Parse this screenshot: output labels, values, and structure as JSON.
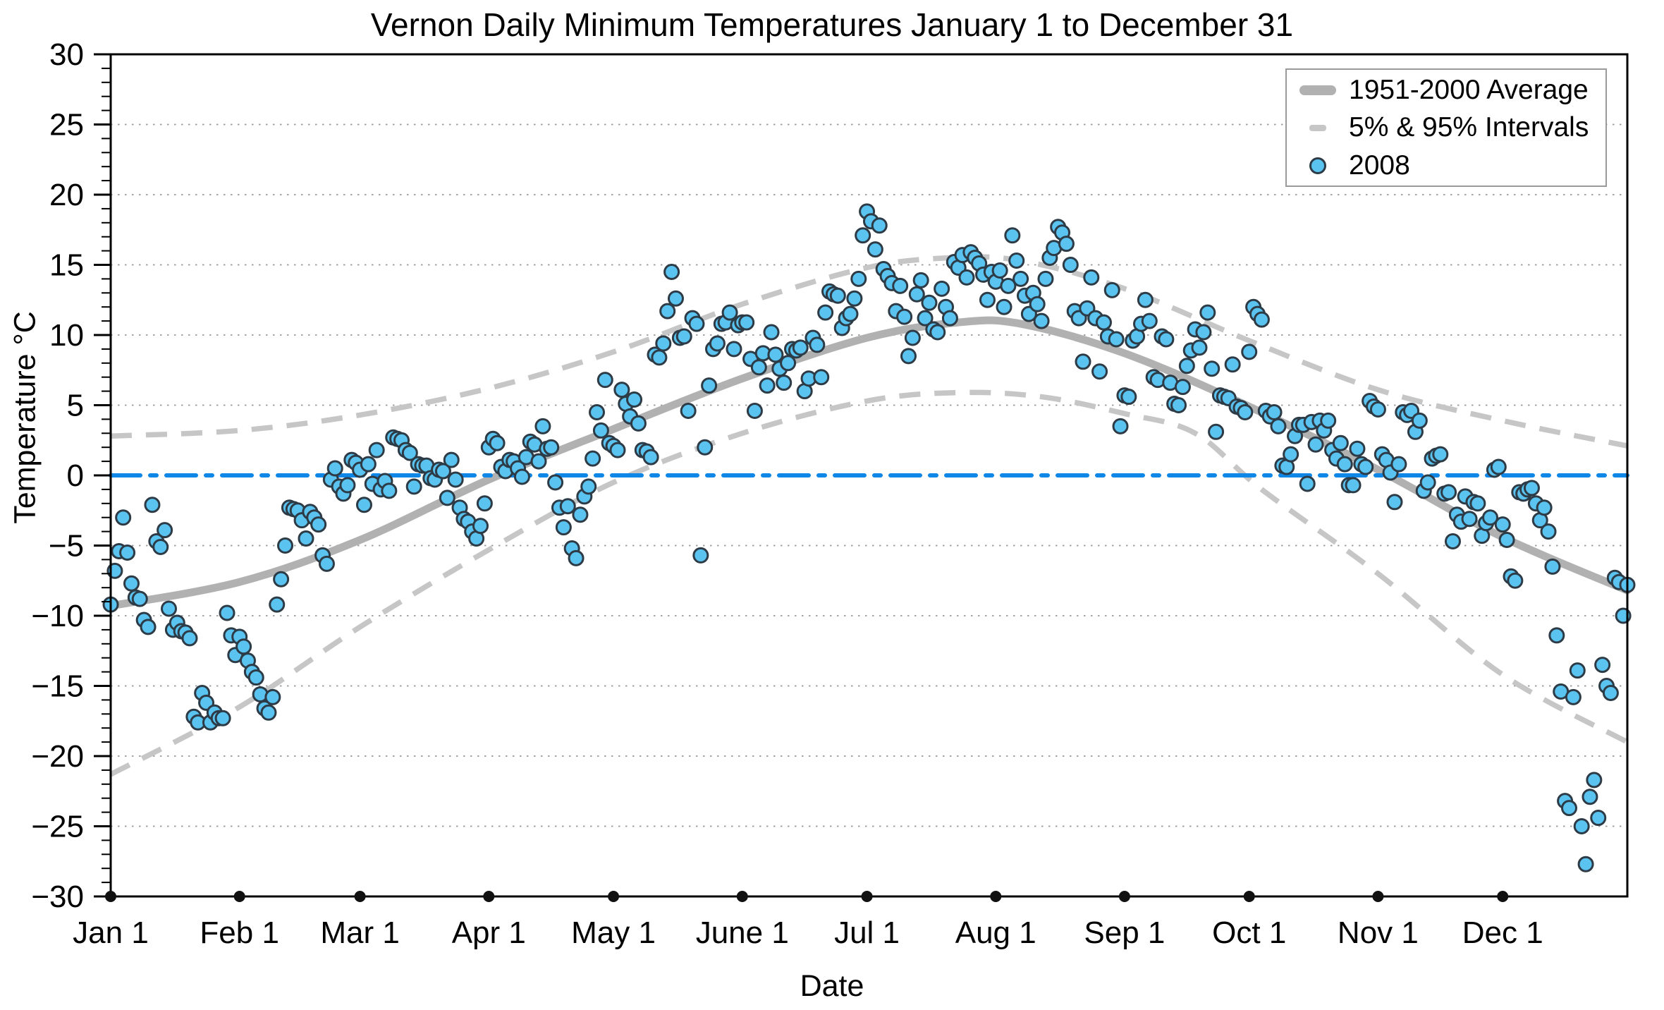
{
  "chart_data": {
    "type": "scatter",
    "title": "Vernon Daily Minimum Temperatures January 1 to December 31",
    "xlabel": "Date",
    "ylabel": "Temperature °C",
    "ylim": [
      -30,
      30
    ],
    "x_range": [
      1,
      366
    ],
    "x_unit": "day_of_year",
    "grid": "horizontal-dotted",
    "legend_position": "top-right",
    "x_tick_days": [
      1,
      32,
      61,
      92,
      122,
      153,
      183,
      214,
      245,
      275,
      306,
      336
    ],
    "x_tick_labels": [
      "Jan 1",
      "Feb 1",
      "Mar 1",
      "Apr 1",
      "May 1",
      "June 1",
      "Jul 1",
      "Aug 1",
      "Sep 1",
      "Oct 1",
      "Nov 1",
      "Dec 1"
    ],
    "y_tick_values": [
      30,
      25,
      20,
      15,
      10,
      5,
      0,
      -5,
      -10,
      -15,
      -20,
      -25,
      -30
    ],
    "y_tick_labels": [
      "30",
      "25",
      "20",
      "15",
      "10",
      "5",
      "0",
      "−5",
      "−10",
      "−15",
      "−20",
      "−25",
      "−30"
    ],
    "grid_values": [
      25,
      20,
      15,
      10,
      5,
      -5,
      -10,
      -15,
      -20,
      -25
    ],
    "zero_line_value": 0,
    "legend": [
      {
        "label": "1951-2000 Average",
        "swatch": "thick-gray-line"
      },
      {
        "label": "5% & 95% Intervals",
        "swatch": "gray-dash"
      },
      {
        "label": "2008",
        "swatch": "blue-dot"
      }
    ],
    "colors": {
      "point_fill": "#5bc3f0",
      "point_edge": "#2d3b46",
      "average_line": "#b1b1b1",
      "interval_line": "#c6c6c6",
      "zero_line": "#0f87e6",
      "grid": "#999999",
      "axis": "#000000",
      "legend_border": "#9a9a9a",
      "background": "#ffffff"
    },
    "series": [
      {
        "name": "1951-2000 Average",
        "type": "line",
        "points": [
          [
            1,
            -9.3
          ],
          [
            32,
            -7.6
          ],
          [
            61,
            -4.6
          ],
          [
            92,
            -0.3
          ],
          [
            122,
            3.3
          ],
          [
            153,
            6.9
          ],
          [
            183,
            9.8
          ],
          [
            205,
            10.9
          ],
          [
            220,
            10.8
          ],
          [
            245,
            8.7
          ],
          [
            275,
            4.9
          ],
          [
            306,
            0.4
          ],
          [
            336,
            -4.4
          ],
          [
            366,
            -8.2
          ]
        ]
      },
      {
        "name": "95% Interval",
        "type": "dashed-line",
        "points": [
          [
            1,
            2.8
          ],
          [
            32,
            3.2
          ],
          [
            61,
            4.3
          ],
          [
            92,
            6.2
          ],
          [
            122,
            8.8
          ],
          [
            153,
            12.2
          ],
          [
            183,
            14.8
          ],
          [
            203,
            15.5
          ],
          [
            220,
            15.3
          ],
          [
            245,
            13.3
          ],
          [
            275,
            9.6
          ],
          [
            306,
            6.1
          ],
          [
            336,
            3.9
          ],
          [
            366,
            2.1
          ]
        ]
      },
      {
        "name": "5% Interval",
        "type": "dashed-line",
        "points": [
          [
            1,
            -21.3
          ],
          [
            32,
            -16.5
          ],
          [
            61,
            -10.8
          ],
          [
            92,
            -5.3
          ],
          [
            122,
            -0.5
          ],
          [
            153,
            3.0
          ],
          [
            183,
            5.3
          ],
          [
            205,
            5.9
          ],
          [
            225,
            5.6
          ],
          [
            245,
            4.4
          ],
          [
            262,
            3.0
          ],
          [
            278,
            -1.0
          ],
          [
            306,
            -7.0
          ],
          [
            336,
            -14.2
          ],
          [
            366,
            -19.0
          ]
        ]
      },
      {
        "name": "2008",
        "type": "scatter",
        "x_start_day": 1,
        "daily_values": [
          -9.2,
          -6.8,
          -5.4,
          -3.0,
          -5.5,
          -7.7,
          -8.7,
          -8.8,
          -10.3,
          -10.8,
          -2.1,
          -4.7,
          -5.1,
          -3.9,
          -9.5,
          -11.0,
          -10.5,
          -11.1,
          -11.2,
          -11.6,
          -17.2,
          -17.6,
          -15.5,
          -16.2,
          -17.6,
          -16.9,
          -17.3,
          -17.3,
          -9.8,
          -11.4,
          -12.8,
          -11.5,
          -12.2,
          -13.2,
          -14.0,
          -14.4,
          -15.6,
          -16.6,
          -16.9,
          -15.8,
          -9.2,
          -7.4,
          -5.0,
          -2.3,
          -2.4,
          -2.5,
          -3.2,
          -4.5,
          -2.6,
          -3.0,
          -3.5,
          -5.7,
          -6.3,
          -0.3,
          0.5,
          -0.8,
          -1.3,
          -0.7,
          1.1,
          0.9,
          0.4,
          -2.1,
          0.8,
          -0.6,
          1.8,
          -1.0,
          -0.4,
          -1.1,
          2.7,
          2.6,
          2.5,
          1.8,
          1.6,
          -0.8,
          0.8,
          0.7,
          0.7,
          -0.2,
          -0.3,
          0.4,
          0.3,
          -1.6,
          1.1,
          -0.3,
          -2.3,
          -3.1,
          -3.3,
          -4.0,
          -4.5,
          -3.6,
          -2.0,
          2.0,
          2.6,
          2.3,
          0.6,
          0.3,
          1.1,
          1.0,
          0.5,
          -0.1,
          1.3,
          2.4,
          2.2,
          1.0,
          3.5,
          1.9,
          2.0,
          -0.5,
          -2.3,
          -3.7,
          -2.2,
          -5.2,
          -5.9,
          -2.8,
          -1.5,
          -0.8,
          1.2,
          4.5,
          3.2,
          6.8,
          2.3,
          2.1,
          1.8,
          6.1,
          5.1,
          4.2,
          5.4,
          3.7,
          1.8,
          1.7,
          1.3,
          8.6,
          8.4,
          9.4,
          11.7,
          14.5,
          12.6,
          9.8,
          9.9,
          4.6,
          11.2,
          10.8,
          -5.7,
          2.0,
          6.4,
          9.0,
          9.4,
          10.8,
          10.9,
          11.6,
          9.0,
          10.7,
          10.9,
          10.9,
          8.3,
          4.6,
          7.7,
          8.7,
          6.4,
          10.2,
          8.6,
          7.6,
          6.6,
          8.0,
          9.0,
          8.9,
          9.1,
          6.0,
          6.9,
          9.8,
          9.3,
          7.0,
          11.6,
          13.1,
          12.9,
          12.8,
          10.5,
          11.2,
          11.5,
          12.6,
          14.0,
          17.1,
          18.8,
          18.1,
          16.1,
          17.8,
          14.7,
          14.2,
          13.7,
          11.7,
          13.5,
          11.3,
          8.5,
          9.8,
          12.9,
          13.9,
          11.2,
          12.3,
          10.4,
          10.2,
          13.3,
          12.0,
          11.2,
          15.2,
          14.8,
          15.7,
          14.1,
          15.9,
          15.5,
          15.1,
          14.3,
          12.5,
          14.5,
          13.8,
          14.6,
          12.0,
          13.5,
          17.1,
          15.3,
          14.0,
          12.8,
          11.5,
          13.0,
          12.2,
          11.0,
          14.0,
          15.5,
          16.2,
          17.7,
          17.3,
          16.5,
          15.0,
          11.7,
          11.2,
          8.1,
          11.9,
          14.1,
          11.2,
          7.4,
          10.9,
          9.9,
          13.2,
          9.7,
          3.5,
          5.7,
          5.6,
          9.6,
          9.9,
          10.8,
          12.5,
          11.0,
          7.0,
          6.8,
          9.9,
          9.7,
          6.6,
          5.1,
          5.0,
          6.3,
          7.8,
          8.9,
          10.4,
          9.1,
          10.2,
          11.6,
          7.6,
          3.1,
          5.7,
          5.6,
          5.5,
          7.9,
          4.9,
          4.8,
          4.5,
          8.8,
          12.0,
          11.5,
          11.1,
          4.6,
          4.2,
          4.5,
          3.5,
          0.7,
          0.6,
          1.5,
          2.8,
          3.6,
          3.6,
          -0.6,
          3.8,
          2.2,
          3.9,
          3.2,
          3.9,
          1.8,
          1.2,
          2.3,
          0.8,
          -0.7,
          -0.7,
          1.9,
          0.8,
          0.6,
          5.3,
          4.9,
          4.7,
          1.5,
          1.1,
          0.2,
          -1.9,
          0.8,
          4.5,
          4.3,
          4.6,
          3.1,
          3.9,
          -1.1,
          -0.5,
          1.2,
          1.4,
          1.5,
          -1.3,
          -1.2,
          -4.7,
          -2.8,
          -3.3,
          -1.5,
          -3.1,
          -1.9,
          -2.0,
          -4.3,
          -3.4,
          -3.0,
          0.4,
          0.6,
          -3.5,
          -4.6,
          -7.2,
          -7.5,
          -1.2,
          -1.3,
          -1.0,
          -0.9,
          -2.0,
          -3.2,
          -2.3,
          -4.0,
          -6.5,
          -11.4,
          -15.4,
          -23.2,
          -23.7,
          -15.8,
          -13.9,
          -25.0,
          -27.7,
          -22.9,
          -21.7,
          -24.4,
          -13.5,
          -15.0,
          -15.5,
          -7.3,
          -7.6,
          -10.0,
          -7.8
        ]
      }
    ]
  }
}
